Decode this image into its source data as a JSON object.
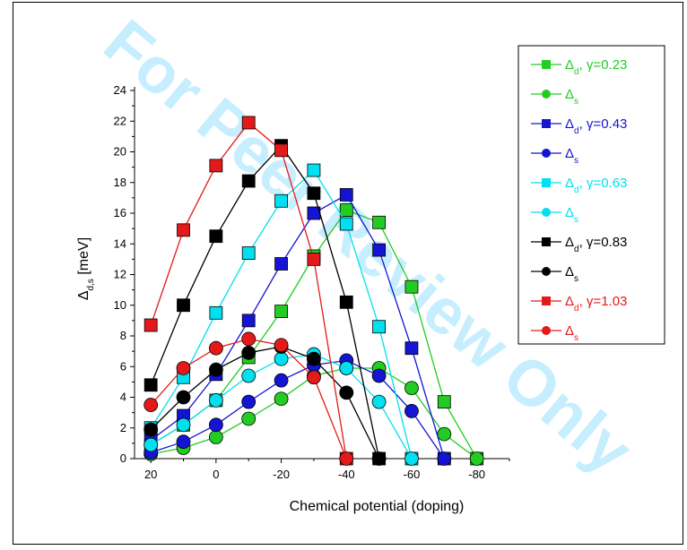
{
  "chart_data": {
    "type": "line",
    "watermark": "For Peer Review Only",
    "xlabel": "Chemical potential (doping)",
    "ylabel_main": "Δ",
    "ylabel_sub": "d,s",
    "ylabel_unit": " [meV]",
    "xlim": [
      25,
      -90
    ],
    "ylim": [
      0,
      24
    ],
    "xticks": [
      20,
      0,
      -20,
      -40,
      -60,
      -80
    ],
    "yticks": [
      0,
      2,
      4,
      6,
      8,
      10,
      12,
      14,
      16,
      18,
      20,
      22,
      24
    ],
    "x": [
      20,
      10,
      0,
      -10,
      -20,
      -30,
      -40,
      -50,
      -60,
      -70,
      -80
    ],
    "legend_position": "right",
    "series": [
      {
        "name": "d",
        "gamma": "0.23",
        "marker": "square",
        "color": "#22cc22",
        "x": [
          20,
          10,
          0,
          -10,
          -20,
          -30,
          -40,
          -50,
          -60,
          -70,
          -80
        ],
        "values": [
          0.9,
          2.2,
          3.8,
          6.6,
          9.6,
          13.2,
          16.2,
          15.4,
          11.2,
          3.7,
          0
        ]
      },
      {
        "name": "s",
        "gamma": "",
        "marker": "circle",
        "color": "#22cc22",
        "x": [
          20,
          10,
          0,
          -10,
          -20,
          -30,
          -40,
          -50,
          -60,
          -70,
          -80
        ],
        "values": [
          0.3,
          0.7,
          1.4,
          2.6,
          3.9,
          5.4,
          5.9,
          5.9,
          4.6,
          1.6,
          0
        ]
      },
      {
        "name": "d",
        "gamma": "0.43",
        "marker": "square",
        "color": "#1414d2",
        "x": [
          20,
          10,
          0,
          -10,
          -20,
          -30,
          -40,
          -50,
          -60,
          -70
        ],
        "values": [
          1.2,
          2.8,
          5.5,
          9.0,
          12.7,
          16.0,
          17.2,
          13.6,
          7.2,
          0
        ]
      },
      {
        "name": "s",
        "gamma": "",
        "marker": "circle",
        "color": "#1414d2",
        "x": [
          20,
          10,
          0,
          -10,
          -20,
          -30,
          -40,
          -50,
          -60,
          -70
        ],
        "values": [
          0.4,
          1.1,
          2.2,
          3.7,
          5.1,
          6.1,
          6.4,
          5.4,
          3.1,
          0
        ]
      },
      {
        "name": "d",
        "gamma": "0.63",
        "marker": "square",
        "color": "#00e0f0",
        "x": [
          20,
          10,
          0,
          -10,
          -20,
          -30,
          -40,
          -50,
          -60
        ],
        "values": [
          2.0,
          5.3,
          9.5,
          13.4,
          16.8,
          18.8,
          15.3,
          8.6,
          0
        ]
      },
      {
        "name": "s",
        "gamma": "",
        "marker": "circle",
        "color": "#00e0f0",
        "x": [
          20,
          10,
          0,
          -10,
          -20,
          -30,
          -40,
          -50,
          -60
        ],
        "values": [
          0.9,
          2.2,
          3.8,
          5.4,
          6.5,
          6.8,
          5.9,
          3.7,
          0
        ]
      },
      {
        "name": "d",
        "gamma": "0.83",
        "marker": "square",
        "color": "#000000",
        "x": [
          20,
          10,
          0,
          -10,
          -20,
          -30,
          -40,
          -50
        ],
        "values": [
          4.8,
          10.0,
          14.5,
          18.1,
          20.4,
          17.3,
          10.2,
          0
        ]
      },
      {
        "name": "s",
        "gamma": "",
        "marker": "circle",
        "color": "#000000",
        "x": [
          20,
          10,
          0,
          -10,
          -20,
          -30,
          -40,
          -50
        ],
        "values": [
          1.9,
          4.0,
          5.8,
          6.9,
          7.3,
          6.5,
          4.3,
          0
        ]
      },
      {
        "name": "d",
        "gamma": "1.03",
        "marker": "square",
        "color": "#e41a1a",
        "x": [
          20,
          10,
          0,
          -10,
          -20,
          -30,
          -40
        ],
        "values": [
          8.7,
          14.9,
          19.1,
          21.9,
          20.1,
          13.0,
          0
        ]
      },
      {
        "name": "s",
        "gamma": "",
        "marker": "circle",
        "color": "#e41a1a",
        "x": [
          20,
          10,
          0,
          -10,
          -20,
          -30,
          -40
        ],
        "values": [
          3.5,
          5.9,
          7.2,
          7.8,
          7.4,
          5.3,
          0
        ]
      }
    ],
    "legend_prefix": "Δ",
    "legend_gamma_prefix": ", γ="
  }
}
